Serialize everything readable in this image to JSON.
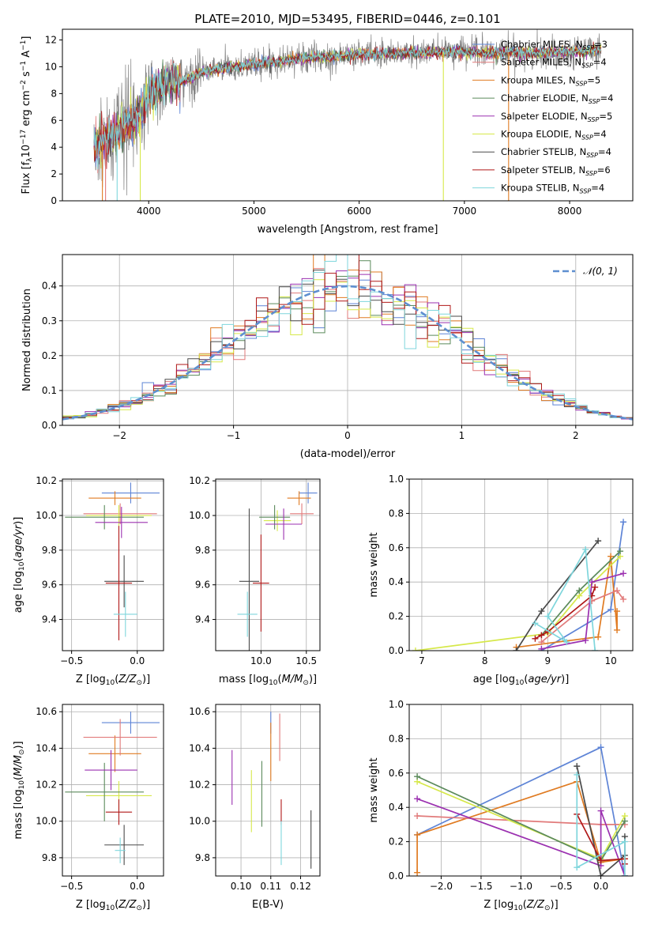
{
  "chart_data": [
    {
      "id": "spectrum",
      "type": "line",
      "title": "PLATE=2010, MJD=53495, FIBERID=0446, z=0.101",
      "xlabel": "wavelength [Angstrom, rest frame]",
      "ylabel": "Flux [f_λ 10^{-17} erg cm^{-2} s^{-1} A^{-1}]",
      "xlim": [
        3180,
        8600
      ],
      "ylim": [
        0,
        12.8
      ],
      "xticks": [
        4000,
        5000,
        6000,
        7000,
        8000
      ],
      "yticks": [
        0,
        2,
        4,
        6,
        8,
        10,
        12
      ],
      "legend_position": "top-right",
      "data_color": "#808080",
      "series": [
        {
          "name": "Chabrier MILES, N_SSP=3",
          "color": "#5e84d6",
          "nssp": 3
        },
        {
          "name": "Salpeter MILES, N_SSP=4",
          "color": "#e17a7a",
          "nssp": 4
        },
        {
          "name": "Kroupa MILES, N_SSP=5",
          "color": "#e07b22",
          "nssp": 5
        },
        {
          "name": "Chabrier ELODIE, N_SSP=4",
          "color": "#5b8a5b",
          "nssp": 4
        },
        {
          "name": "Salpeter ELODIE, N_SSP=5",
          "color": "#9b30b0",
          "nssp": 5
        },
        {
          "name": "Kroupa ELODIE, N_SSP=4",
          "color": "#d6e84a",
          "nssp": 4
        },
        {
          "name": "Chabrier STELIB, N_SSP=4",
          "color": "#4a4a4a",
          "nssp": 4
        },
        {
          "name": "Salpeter STELIB, N_SSP=6",
          "color": "#b01818",
          "nssp": 6
        },
        {
          "name": "Kroupa STELIB, N_SSP=4",
          "color": "#7fd6dc",
          "nssp": 4
        }
      ],
      "continuum": {
        "x": [
          3480,
          3600,
          3700,
          3800,
          3900,
          3950,
          4000,
          4100,
          4200,
          4300,
          4400,
          4500,
          4600,
          4800,
          5000,
          5200,
          5400,
          5600,
          5800,
          6000,
          6200,
          6400,
          6600,
          6800,
          7000,
          7200,
          7400,
          7600,
          7800,
          8000,
          8200,
          8300
        ],
        "y": [
          4.2,
          4.5,
          5.2,
          5.8,
          6.2,
          7.0,
          7.8,
          8.4,
          9.0,
          8.8,
          9.2,
          9.6,
          9.7,
          10.0,
          10.2,
          10.4,
          10.6,
          10.7,
          10.8,
          10.9,
          11.0,
          11.0,
          11.05,
          11.1,
          11.1,
          11.05,
          11.1,
          11.0,
          11.1,
          11.1,
          11.2,
          11.3
        ]
      },
      "drop_lines": [
        {
          "x": 3560,
          "color": "#e07b22"
        },
        {
          "x": 3590,
          "color": "#e17a7a"
        },
        {
          "x": 3700,
          "color": "#7fd6dc"
        },
        {
          "x": 3920,
          "color": "#d6e84a"
        },
        {
          "x": 6800,
          "color": "#d6e84a"
        },
        {
          "x": 7420,
          "color": "#e07b22"
        }
      ]
    },
    {
      "id": "residuals",
      "type": "histogram",
      "xlabel": "(data-model)/error",
      "ylabel": "Normed distribution",
      "xlim": [
        -2.5,
        2.5
      ],
      "ylim": [
        0,
        0.49
      ],
      "xticks": [
        -2,
        -1,
        0,
        1,
        2
      ],
      "yticks": [
        0.0,
        0.1,
        0.2,
        0.3,
        0.4
      ],
      "grid": true,
      "bin_width": 0.1,
      "reference_curve": {
        "name": "𝒩(0, 1)",
        "style": "dashed",
        "color": "#5e8fd0",
        "mean": 0,
        "sigma": 1
      },
      "legend_position": "top-right"
    },
    {
      "id": "age_vs_Z",
      "type": "errorbar",
      "xlabel": "Z [log10(Z/Z⊙)]",
      "ylabel": "age [log10(age/yr)]",
      "xlim": [
        -0.57,
        0.2
      ],
      "ylim": [
        9.22,
        10.21
      ],
      "xticks": [
        -0.5,
        0.0
      ],
      "yticks": [
        9.4,
        9.6,
        9.8,
        10.0,
        10.2
      ],
      "grid": true,
      "points": [
        {
          "x": -0.05,
          "y": 10.13,
          "xerr": 0.22,
          "yerr": 0.06,
          "color": "#5e84d6"
        },
        {
          "x": -0.17,
          "y": 10.1,
          "xerr": 0.2,
          "yerr": 0.04,
          "color": "#e07b22"
        },
        {
          "x": -0.13,
          "y": 10.01,
          "xerr": 0.28,
          "yerr": 0.06,
          "color": "#e17a7a"
        },
        {
          "x": -0.14,
          "y": 10.0,
          "xerr": 0.25,
          "yerr": 0.06,
          "color": "#d6e84a"
        },
        {
          "x": -0.25,
          "y": 9.99,
          "xerr": 0.3,
          "yerr": 0.07,
          "color": "#5b8a5b"
        },
        {
          "x": -0.12,
          "y": 9.96,
          "xerr": 0.2,
          "yerr": 0.09,
          "color": "#9b30b0"
        },
        {
          "x": -0.1,
          "y": 9.62,
          "xerr": 0.15,
          "yerr": 0.15,
          "color": "#4a4a4a"
        },
        {
          "x": -0.14,
          "y": 9.61,
          "xerr": 0.1,
          "yerr": 0.33,
          "color": "#b01818"
        },
        {
          "x": -0.09,
          "y": 9.43,
          "xerr": 0.09,
          "yerr": 0.13,
          "color": "#7fd6dc"
        }
      ]
    },
    {
      "id": "age_vs_mass",
      "type": "errorbar",
      "xlabel": "mass [log10(M/M⊙)]",
      "ylabel": "",
      "xlim": [
        9.5,
        10.65
      ],
      "ylim": [
        9.22,
        10.21
      ],
      "xticks": [
        10.0,
        10.5
      ],
      "yticks": [
        9.4,
        9.6,
        9.8,
        10.0,
        10.2
      ],
      "grid": true,
      "points": [
        {
          "x": 10.52,
          "y": 10.13,
          "xerr": 0.1,
          "yerr": 0.06,
          "color": "#5e84d6"
        },
        {
          "x": 10.42,
          "y": 10.1,
          "xerr": 0.13,
          "yerr": 0.04,
          "color": "#e07b22"
        },
        {
          "x": 10.45,
          "y": 10.01,
          "xerr": 0.13,
          "yerr": 0.06,
          "color": "#e17a7a"
        },
        {
          "x": 10.18,
          "y": 9.97,
          "xerr": 0.15,
          "yerr": 0.06,
          "color": "#d6e84a"
        },
        {
          "x": 10.15,
          "y": 9.99,
          "xerr": 0.17,
          "yerr": 0.07,
          "color": "#5b8a5b"
        },
        {
          "x": 10.25,
          "y": 9.95,
          "xerr": 0.2,
          "yerr": 0.09,
          "color": "#9b30b0"
        },
        {
          "x": 9.87,
          "y": 9.62,
          "xerr": 0.11,
          "yerr": 0.42,
          "color": "#4a4a4a"
        },
        {
          "x": 10.0,
          "y": 9.61,
          "xerr": 0.09,
          "yerr": 0.28,
          "color": "#b01818"
        },
        {
          "x": 9.85,
          "y": 9.43,
          "xerr": 0.11,
          "yerr": 0.13,
          "color": "#7fd6dc"
        }
      ]
    },
    {
      "id": "weight_vs_age",
      "type": "line",
      "xlabel": "age [log10(age/yr)]",
      "ylabel": "mass weight",
      "xlim": [
        6.8,
        10.35
      ],
      "ylim": [
        0,
        1.0
      ],
      "xticks": [
        7,
        8,
        9,
        10
      ],
      "yticks": [
        0.0,
        0.2,
        0.4,
        0.6,
        0.8,
        1.0
      ],
      "grid": true,
      "series": [
        {
          "color": "#5e84d6",
          "x": [
            8.9,
            10.0,
            10.2
          ],
          "y": [
            0.0,
            0.24,
            0.75
          ]
        },
        {
          "color": "#e07b22",
          "x": [
            8.5,
            9.8,
            10.0,
            10.1,
            10.1
          ],
          "y": [
            0.02,
            0.08,
            0.55,
            0.12,
            0.23
          ]
        },
        {
          "color": "#e17a7a",
          "x": [
            8.9,
            9.7,
            10.1,
            10.2
          ],
          "y": [
            0.05,
            0.29,
            0.35,
            0.3
          ]
        },
        {
          "color": "#d6e84a",
          "x": [
            6.9,
            9.0,
            9.5,
            10.15
          ],
          "y": [
            0.0,
            0.1,
            0.32,
            0.55
          ]
        },
        {
          "color": "#5b8a5b",
          "x": [
            8.9,
            9.5,
            10.15
          ],
          "y": [
            0.09,
            0.35,
            0.58
          ]
        },
        {
          "color": "#9b30b0",
          "x": [
            8.9,
            9.6,
            9.7,
            10.2
          ],
          "y": [
            0.01,
            0.06,
            0.4,
            0.45
          ]
        },
        {
          "color": "#4a4a4a",
          "x": [
            8.5,
            8.9,
            9.8
          ],
          "y": [
            0.0,
            0.23,
            0.64
          ]
        },
        {
          "color": "#b01818",
          "x": [
            8.8,
            8.9,
            9.0,
            9.7,
            9.75
          ],
          "y": [
            0.07,
            0.09,
            0.11,
            0.32,
            0.37
          ]
        },
        {
          "color": "#7fd6dc",
          "x": [
            8.8,
            9.3,
            9.0,
            9.6,
            9.75
          ],
          "y": [
            0.16,
            0.05,
            0.2,
            0.59,
            0.0
          ]
        }
      ]
    },
    {
      "id": "mass_vs_Z",
      "type": "errorbar",
      "xlabel": "Z [log10(Z/Z⊙)]",
      "ylabel": "mass [log10(M/M⊙)]",
      "xlim": [
        -0.57,
        0.2
      ],
      "ylim": [
        9.7,
        10.64
      ],
      "xticks": [
        -0.5,
        0.0
      ],
      "yticks": [
        9.8,
        10.0,
        10.2,
        10.4,
        10.6
      ],
      "grid": true,
      "points": [
        {
          "x": -0.05,
          "y": 10.54,
          "xerr": 0.22,
          "yerr": 0.06,
          "color": "#5e84d6"
        },
        {
          "x": -0.17,
          "y": 10.37,
          "xerr": 0.2,
          "yerr": 0.1,
          "color": "#e07b22"
        },
        {
          "x": -0.13,
          "y": 10.46,
          "xerr": 0.28,
          "yerr": 0.1,
          "color": "#e17a7a"
        },
        {
          "x": -0.14,
          "y": 10.14,
          "xerr": 0.25,
          "yerr": 0.08,
          "color": "#d6e84a"
        },
        {
          "x": -0.25,
          "y": 10.16,
          "xerr": 0.3,
          "yerr": 0.16,
          "color": "#5b8a5b"
        },
        {
          "x": -0.2,
          "y": 10.28,
          "xerr": 0.2,
          "yerr": 0.11,
          "color": "#9b30b0"
        },
        {
          "x": -0.1,
          "y": 9.87,
          "xerr": 0.15,
          "yerr": 0.11,
          "color": "#4a4a4a"
        },
        {
          "x": -0.14,
          "y": 10.05,
          "xerr": 0.1,
          "yerr": 0.07,
          "color": "#b01818"
        },
        {
          "x": -0.13,
          "y": 9.84,
          "xerr": 0.04,
          "yerr": 0.07,
          "color": "#7fd6dc"
        }
      ]
    },
    {
      "id": "mass_vs_EBV",
      "type": "errorbar",
      "xlabel": "E(B-V)",
      "ylabel": "",
      "xlim": [
        0.0915,
        0.1265
      ],
      "ylim": [
        9.7,
        10.64
      ],
      "xticks": [
        0.1,
        0.11,
        0.12
      ],
      "yticks": [
        9.8,
        10.0,
        10.2,
        10.4,
        10.6
      ],
      "grid": true,
      "points": [
        {
          "x": 0.11,
          "y": 10.54,
          "xerr": 0.0,
          "yerr": 0.06,
          "color": "#5e84d6"
        },
        {
          "x": 0.11,
          "y": 10.38,
          "xerr": 0.0,
          "yerr": 0.16,
          "color": "#e07b22"
        },
        {
          "x": 0.113,
          "y": 10.46,
          "xerr": 0.0,
          "yerr": 0.13,
          "color": "#e17a7a"
        },
        {
          "x": 0.1035,
          "y": 10.11,
          "xerr": 0.0,
          "yerr": 0.17,
          "color": "#d6e84a"
        },
        {
          "x": 0.107,
          "y": 10.15,
          "xerr": 0.0,
          "yerr": 0.18,
          "color": "#5b8a5b"
        },
        {
          "x": 0.097,
          "y": 10.24,
          "xerr": 0.0,
          "yerr": 0.15,
          "color": "#9b30b0"
        },
        {
          "x": 0.1235,
          "y": 9.9,
          "xerr": 0.0,
          "yerr": 0.16,
          "color": "#4a4a4a"
        },
        {
          "x": 0.1135,
          "y": 10.05,
          "xerr": 0.0,
          "yerr": 0.07,
          "color": "#b01818"
        },
        {
          "x": 0.1135,
          "y": 9.88,
          "xerr": 0.0,
          "yerr": 0.12,
          "color": "#7fd6dc"
        }
      ]
    },
    {
      "id": "weight_vs_Z",
      "type": "line",
      "xlabel": "Z [log10(Z/Z⊙)]",
      "ylabel": "mass weight",
      "xlim": [
        -2.4,
        0.4
      ],
      "ylim": [
        0,
        1.0
      ],
      "xticks": [
        -2.0,
        -1.5,
        -1.0,
        -0.5,
        0.0
      ],
      "yticks": [
        0.0,
        0.2,
        0.4,
        0.6,
        0.8,
        1.0
      ],
      "grid": true,
      "series": [
        {
          "color": "#5e84d6",
          "x": [
            -2.3,
            0.0,
            0.3
          ],
          "y": [
            0.24,
            0.75,
            0.0
          ]
        },
        {
          "color": "#e07b22",
          "x": [
            -2.3,
            -2.3,
            -0.3,
            0.0,
            0.3
          ],
          "y": [
            0.02,
            0.24,
            0.55,
            0.08,
            0.1
          ]
        },
        {
          "color": "#e17a7a",
          "x": [
            -2.3,
            0.0,
            0.3
          ],
          "y": [
            0.35,
            0.3,
            0.3
          ]
        },
        {
          "color": "#d6e84a",
          "x": [
            -2.3,
            0.0,
            0.3
          ],
          "y": [
            0.55,
            0.1,
            0.35
          ]
        },
        {
          "color": "#5b8a5b",
          "x": [
            -2.3,
            0.0,
            0.3
          ],
          "y": [
            0.58,
            0.09,
            0.32
          ]
        },
        {
          "color": "#9b30b0",
          "x": [
            -2.3,
            0.0,
            0.0,
            0.3
          ],
          "y": [
            0.45,
            0.06,
            0.38,
            0.0
          ]
        },
        {
          "color": "#4a4a4a",
          "x": [
            -0.3,
            0.0,
            0.3,
            0.3
          ],
          "y": [
            0.64,
            0.0,
            0.12,
            0.23
          ]
        },
        {
          "color": "#b01818",
          "x": [
            -0.3,
            0.0,
            0.3,
            0.3
          ],
          "y": [
            0.36,
            0.09,
            0.1,
            0.07
          ]
        },
        {
          "color": "#7fd6dc",
          "x": [
            -0.3,
            -0.3,
            0.3,
            0.3
          ],
          "y": [
            0.59,
            0.05,
            0.2,
            0.0
          ]
        }
      ]
    }
  ]
}
